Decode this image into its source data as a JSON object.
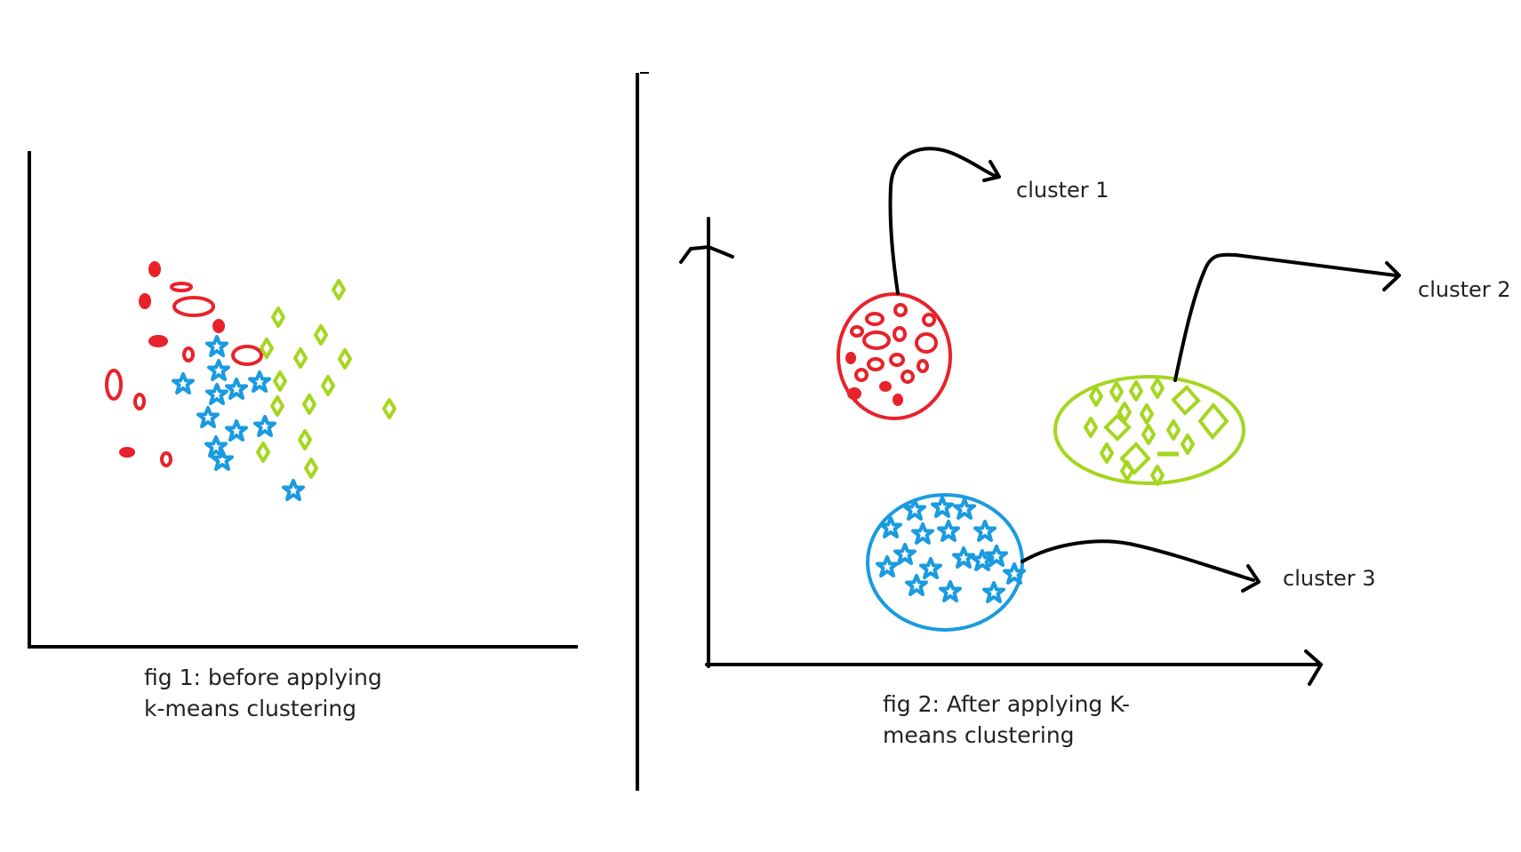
{
  "colors": {
    "axis": "#000000",
    "red": "#e8222a",
    "blue": "#1a9be0",
    "green": "#a5d61e"
  },
  "fig1": {
    "caption_line1": "fig 1: before applying",
    "caption_line2": "k-means clustering"
  },
  "fig2": {
    "caption_line1": "fig 2:  After applying K-",
    "caption_line2": "means clustering",
    "clusters": [
      {
        "label": "cluster 1",
        "color": "red",
        "marker": "circle"
      },
      {
        "label": "cluster 2",
        "color": "green",
        "marker": "diamond"
      },
      {
        "label": "cluster 3",
        "color": "blue",
        "marker": "star"
      }
    ]
  }
}
